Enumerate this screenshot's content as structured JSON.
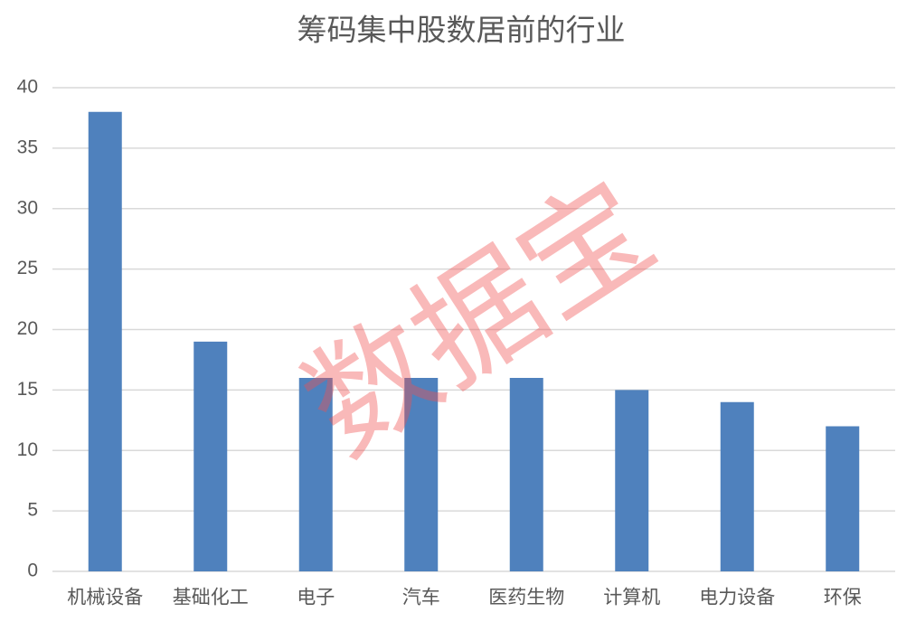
{
  "chart_data": {
    "type": "bar",
    "title": "筹码集中股数居前的行业",
    "categories": [
      "机械设备",
      "基础化工",
      "电子",
      "汽车",
      "医药生物",
      "计算机",
      "电力设备",
      "环保"
    ],
    "values": [
      38,
      19,
      16,
      16,
      16,
      15,
      14,
      12
    ],
    "color": "#4f81bd",
    "ylim": [
      0,
      40
    ],
    "yticks": [
      0,
      5,
      10,
      15,
      20,
      25,
      30,
      35,
      40
    ],
    "grid": true,
    "watermark": "数据宝"
  }
}
